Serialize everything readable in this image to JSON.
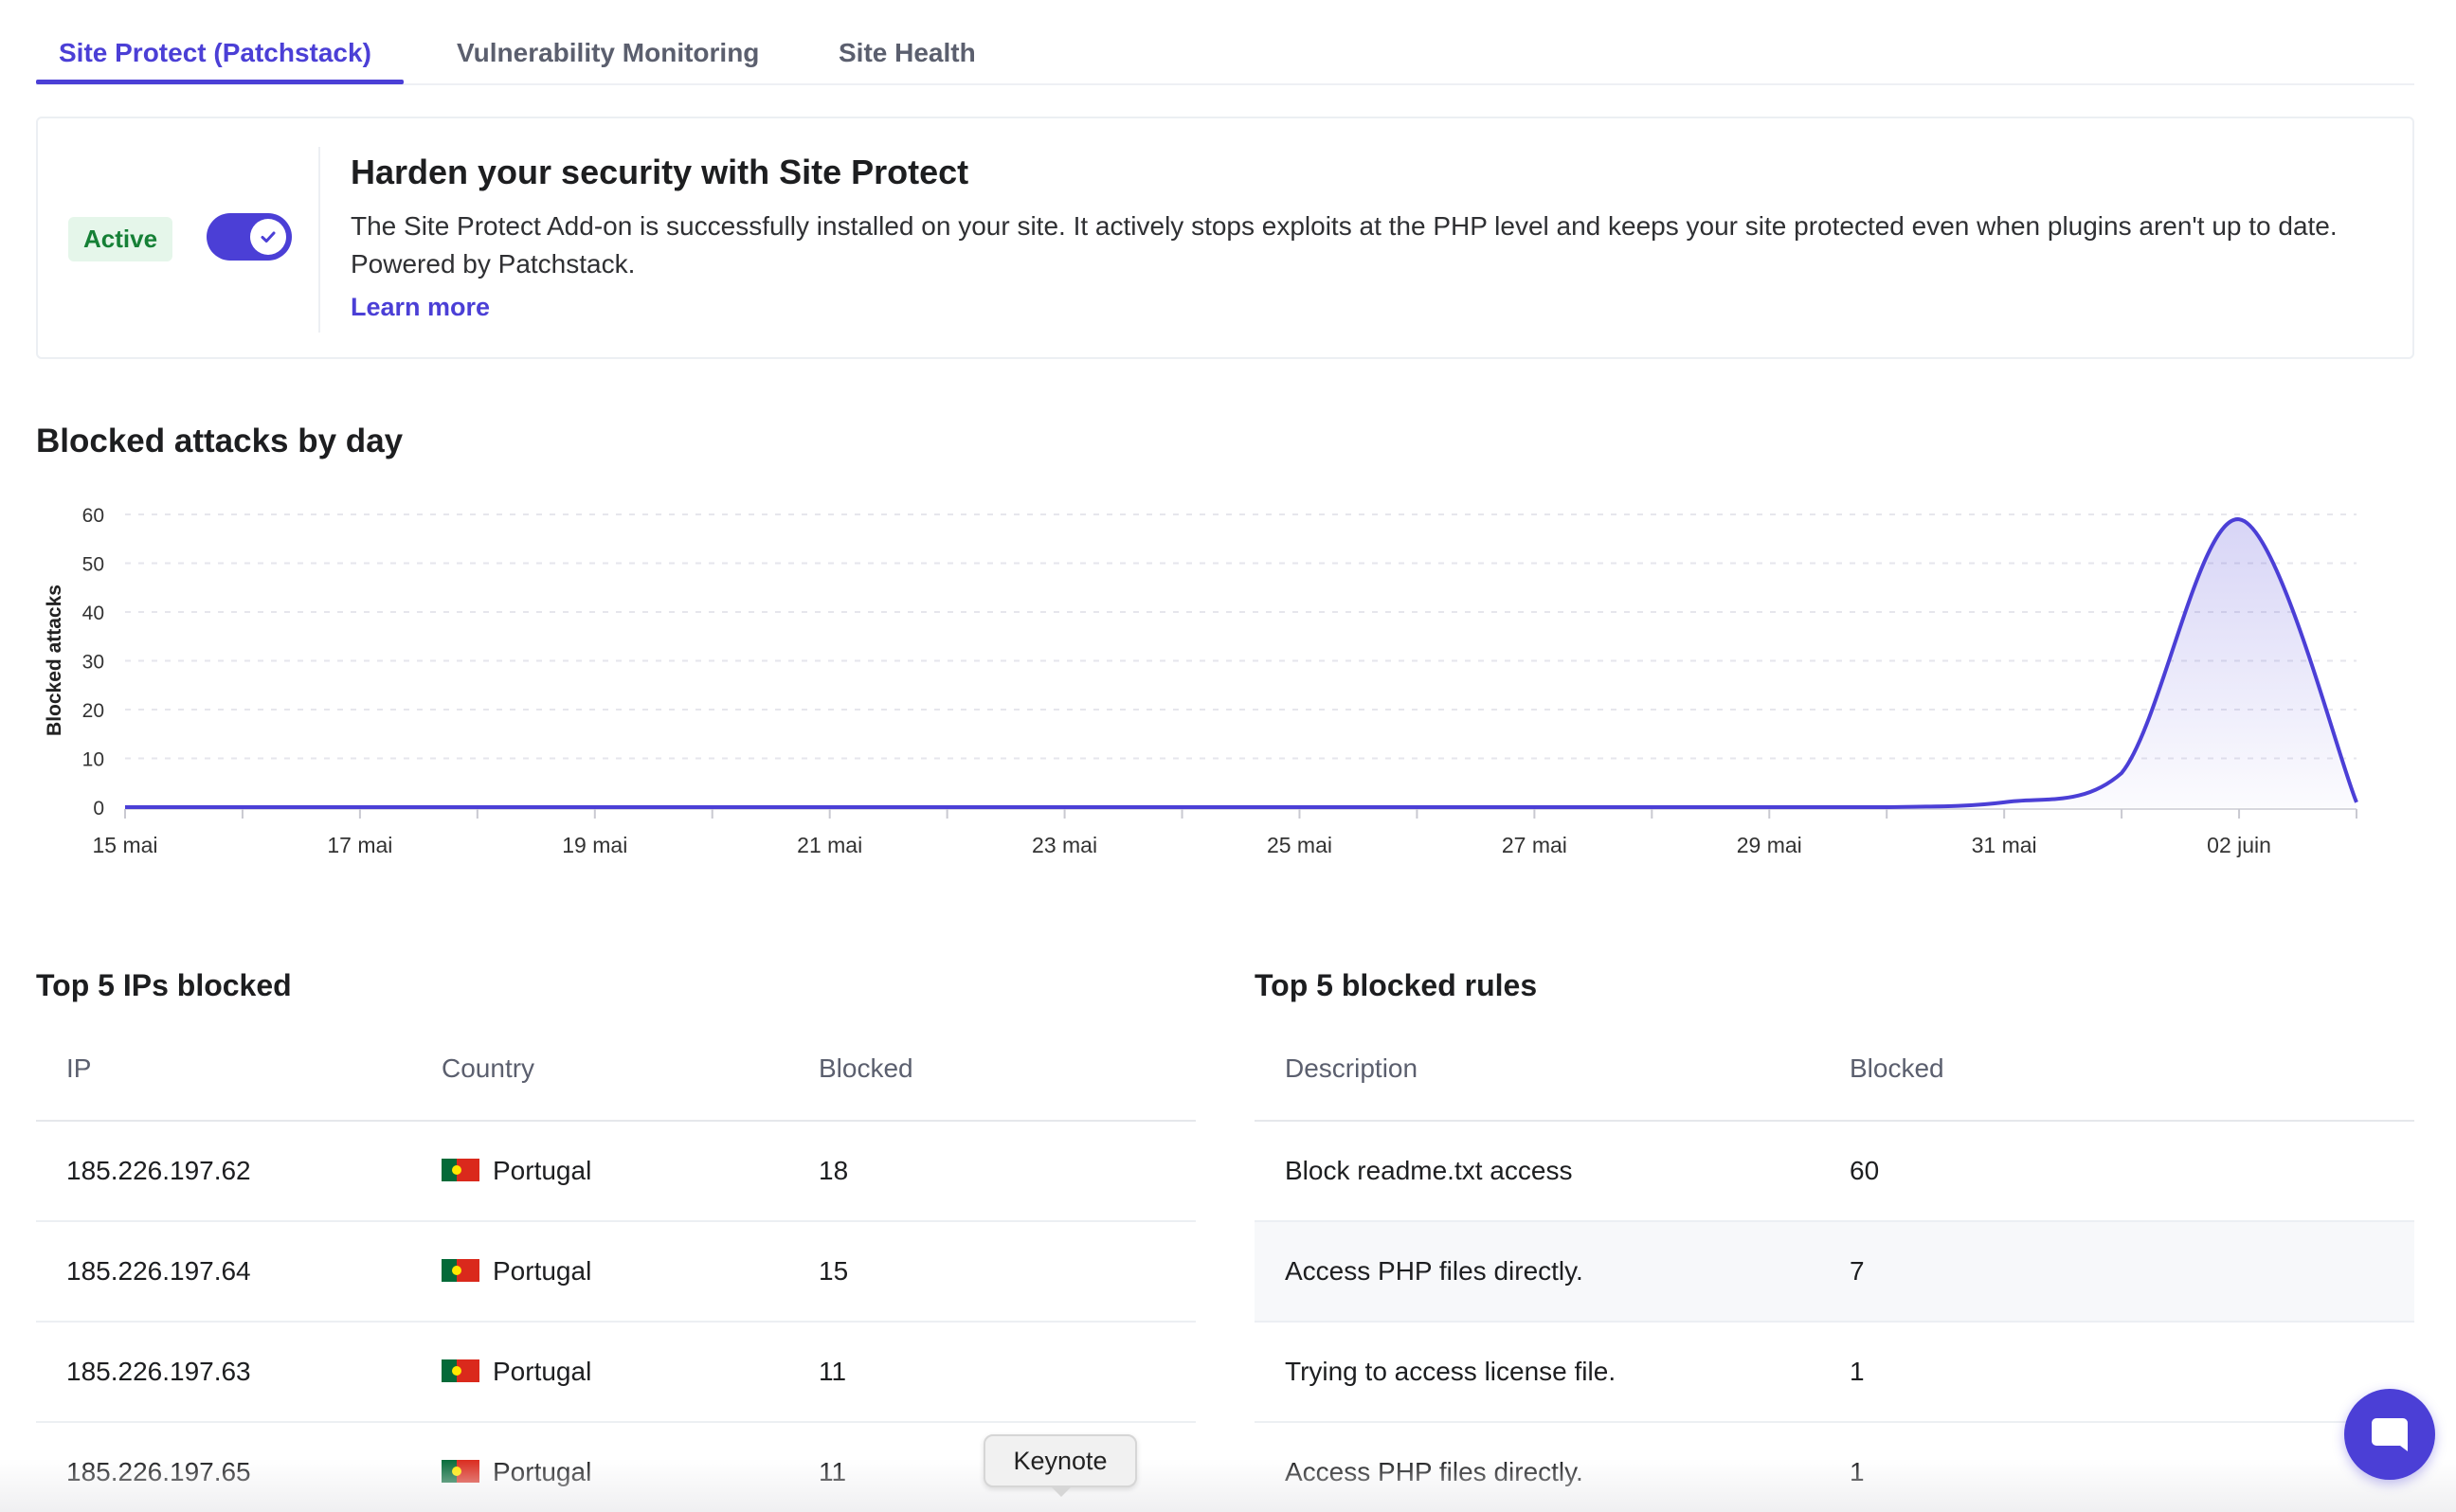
{
  "tabs": [
    {
      "label": "Site Protect (Patchstack)",
      "active": true
    },
    {
      "label": "Vulnerability Monitoring",
      "active": false
    },
    {
      "label": "Site Health",
      "active": false
    }
  ],
  "card": {
    "status_badge": "Active",
    "toggle_on": true,
    "title": "Harden your security with Site Protect",
    "description": "The Site Protect Add-on is successfully installed on your site. It actively stops exploits at the PHP level and keeps your site protected even when plugins aren't up to date. Powered by Patchstack.",
    "link": "Learn more"
  },
  "chart_section": {
    "title": "Blocked attacks by day"
  },
  "chart_data": {
    "type": "area",
    "ylabel": "Blocked attacks",
    "ylim": [
      0,
      60
    ],
    "yticks": [
      0,
      10,
      20,
      30,
      40,
      50,
      60
    ],
    "x": [
      "15 mai",
      "16 mai",
      "17 mai",
      "18 mai",
      "19 mai",
      "20 mai",
      "21 mai",
      "22 mai",
      "23 mai",
      "24 mai",
      "25 mai",
      "26 mai",
      "27 mai",
      "28 mai",
      "29 mai",
      "30 mai",
      "31 mai",
      "01 juin",
      "02 juin",
      "03 juin"
    ],
    "xticks": [
      "15 mai",
      "17 mai",
      "19 mai",
      "21 mai",
      "23 mai",
      "25 mai",
      "27 mai",
      "29 mai",
      "31 mai",
      "02 juin"
    ],
    "values": [
      0,
      0,
      0,
      0,
      0,
      0,
      0,
      0,
      0,
      0,
      0,
      0,
      0,
      0,
      0,
      0,
      1,
      7,
      59,
      1
    ],
    "grid": true,
    "color": "#4b3fd6"
  },
  "ips": {
    "title": "Top 5 IPs blocked",
    "headers": [
      "IP",
      "Country",
      "Blocked"
    ],
    "rows": [
      {
        "ip": "185.226.197.62",
        "country": "Portugal",
        "blocked": "18"
      },
      {
        "ip": "185.226.197.64",
        "country": "Portugal",
        "blocked": "15"
      },
      {
        "ip": "185.226.197.63",
        "country": "Portugal",
        "blocked": "11"
      },
      {
        "ip": "185.226.197.65",
        "country": "Portugal",
        "blocked": "11"
      }
    ]
  },
  "rules": {
    "title": "Top 5 blocked rules",
    "headers": [
      "Description",
      "Blocked"
    ],
    "rows": [
      {
        "description": "Block readme.txt access",
        "blocked": "60"
      },
      {
        "description": "Access PHP files directly.",
        "blocked": "7"
      },
      {
        "description": "Trying to access license file.",
        "blocked": "1"
      },
      {
        "description": "Access PHP files directly.",
        "blocked": "1"
      }
    ]
  },
  "tooltip": {
    "text": "Keynote"
  },
  "colors": {
    "accent": "#4b3fd6",
    "active_badge_bg": "#e5f6ea",
    "active_badge_text": "#158036"
  },
  "icons": {
    "toggle": "check-icon",
    "chat": "chat-bubble-icon",
    "flag": "portugal-flag-icon"
  }
}
